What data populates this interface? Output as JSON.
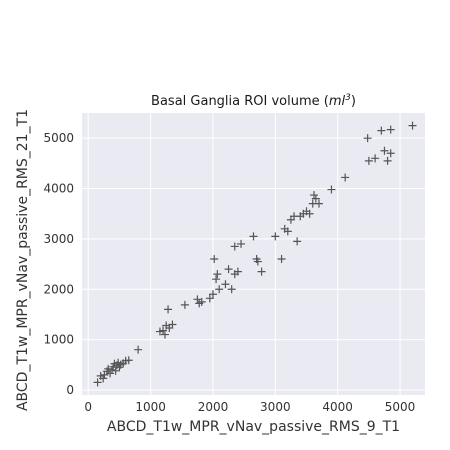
{
  "chart_data": {
    "type": "scatter",
    "title": "Basal Ganglia ROI volume (",
    "title_unit_base": "ml",
    "title_unit_exp": "3",
    "title_suffix": ")",
    "xlabel": "ABCD_T1w_MPR_vNav_passive_RMS_9_T1",
    "ylabel": "ABCD_T1w_MPR_vNav_passive_RMS_21_T1",
    "xlim": [
      -100,
      5400
    ],
    "ylim": [
      -100,
      5500
    ],
    "x_ticks": [
      0,
      1000,
      2000,
      3000,
      4000,
      5000
    ],
    "y_ticks": [
      0,
      1000,
      2000,
      3000,
      4000,
      5000
    ],
    "grid": true,
    "marker": "+",
    "marker_color": "#555555",
    "background_color": "#eaeaf2",
    "points": [
      [
        150,
        150
      ],
      [
        200,
        280
      ],
      [
        240,
        230
      ],
      [
        260,
        300
      ],
      [
        300,
        370
      ],
      [
        320,
        420
      ],
      [
        350,
        330
      ],
      [
        380,
        400
      ],
      [
        400,
        460
      ],
      [
        420,
        520
      ],
      [
        440,
        380
      ],
      [
        460,
        490
      ],
      [
        480,
        540
      ],
      [
        500,
        450
      ],
      [
        520,
        500
      ],
      [
        560,
        530
      ],
      [
        600,
        580
      ],
      [
        650,
        590
      ],
      [
        800,
        800
      ],
      [
        1150,
        1160
      ],
      [
        1200,
        1180
      ],
      [
        1230,
        1100
      ],
      [
        1250,
        1280
      ],
      [
        1280,
        1600
      ],
      [
        1300,
        1230
      ],
      [
        1350,
        1300
      ],
      [
        1550,
        1690
      ],
      [
        1750,
        1800
      ],
      [
        1780,
        1720
      ],
      [
        1820,
        1750
      ],
      [
        1950,
        1820
      ],
      [
        2000,
        1900
      ],
      [
        2020,
        2600
      ],
      [
        2050,
        2200
      ],
      [
        2070,
        2300
      ],
      [
        2100,
        2000
      ],
      [
        2200,
        2100
      ],
      [
        2250,
        2400
      ],
      [
        2300,
        2000
      ],
      [
        2350,
        2300
      ],
      [
        2350,
        2850
      ],
      [
        2400,
        2350
      ],
      [
        2450,
        2900
      ],
      [
        2650,
        3050
      ],
      [
        2700,
        2600
      ],
      [
        2720,
        2550
      ],
      [
        2780,
        2350
      ],
      [
        3000,
        3050
      ],
      [
        3100,
        2600
      ],
      [
        3150,
        3200
      ],
      [
        3200,
        3150
      ],
      [
        3250,
        3380
      ],
      [
        3300,
        3450
      ],
      [
        3350,
        2950
      ],
      [
        3400,
        3450
      ],
      [
        3450,
        3500
      ],
      [
        3500,
        3550
      ],
      [
        3550,
        3500
      ],
      [
        3600,
        3700
      ],
      [
        3620,
        3870
      ],
      [
        3650,
        3800
      ],
      [
        3700,
        3700
      ],
      [
        3900,
        3980
      ],
      [
        4120,
        4220
      ],
      [
        4480,
        5000
      ],
      [
        4500,
        4550
      ],
      [
        4600,
        4600
      ],
      [
        4700,
        5150
      ],
      [
        4750,
        4750
      ],
      [
        4800,
        4550
      ],
      [
        4850,
        4700
      ],
      [
        4850,
        5170
      ],
      [
        5200,
        5250
      ]
    ]
  }
}
